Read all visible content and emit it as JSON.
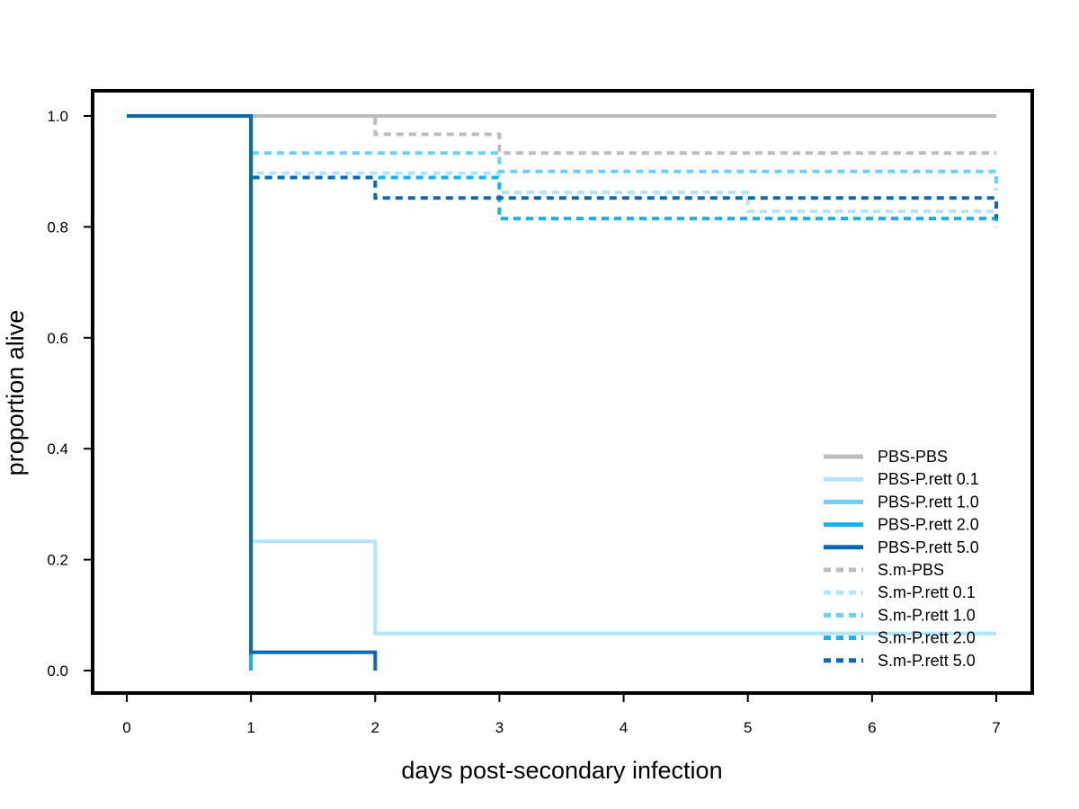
{
  "chart_data": {
    "type": "line",
    "step": true,
    "title": "",
    "xlabel": "days post-secondary infection",
    "ylabel": "proportion alive",
    "xlim": [
      0,
      7
    ],
    "ylim": [
      0,
      1
    ],
    "xticks": [
      "0",
      "1",
      "2",
      "3",
      "4",
      "5",
      "6",
      "7"
    ],
    "yticks": [
      "0.0",
      "0.2",
      "0.4",
      "0.6",
      "0.8",
      "1.0"
    ],
    "grid": false,
    "legend_position": "bottom-right",
    "series": [
      {
        "name": "PBS-PBS",
        "color": "#bdbdbd",
        "dash": "solid",
        "x": [
          0,
          7
        ],
        "y": [
          1.0,
          1.0
        ]
      },
      {
        "name": "PBS-P.rett 0.1",
        "color": "#b3e5fa",
        "dash": "solid",
        "x": [
          1,
          1,
          2,
          2,
          7
        ],
        "y": [
          1.0,
          0.233,
          0.233,
          0.067,
          0.067
        ]
      },
      {
        "name": "PBS-P.rett 1.0",
        "color": "#6dcff6",
        "dash": "solid",
        "x": [
          1,
          1
        ],
        "y": [
          1.0,
          0.0
        ]
      },
      {
        "name": "PBS-P.rett 2.0",
        "color": "#1ab0ef",
        "dash": "solid",
        "x": [
          1,
          1
        ],
        "y": [
          1.0,
          0.0
        ]
      },
      {
        "name": "PBS-P.rett 5.0",
        "color": "#0a6ab1",
        "dash": "solid",
        "x": [
          0,
          1,
          1,
          2,
          2
        ],
        "y": [
          1.0,
          1.0,
          0.033,
          0.033,
          0.0
        ]
      },
      {
        "name": "S.m-PBS",
        "color": "#bdbdbd",
        "dash": "dotted",
        "x": [
          1,
          2,
          2,
          3,
          3,
          7
        ],
        "y": [
          1.0,
          1.0,
          0.967,
          0.967,
          0.933,
          0.933
        ]
      },
      {
        "name": "S.m-P.rett 0.1",
        "color": "#b3e5fa",
        "dash": "dotted",
        "x": [
          1,
          1,
          3,
          3,
          5,
          5,
          7
        ],
        "y": [
          1.0,
          0.897,
          0.897,
          0.862,
          0.862,
          0.828,
          0.828
        ]
      },
      {
        "name": "S.m-P.rett 1.0",
        "color": "#6dcff6",
        "dash": "dotted",
        "x": [
          1,
          1,
          3,
          3,
          7,
          7
        ],
        "y": [
          1.0,
          0.933,
          0.933,
          0.9,
          0.9,
          0.867
        ]
      },
      {
        "name": "S.m-P.rett 2.0",
        "color": "#1ab0ef",
        "dash": "dotted",
        "x": [
          1,
          1,
          3,
          3,
          7,
          7
        ],
        "y": [
          1.0,
          0.889,
          0.889,
          0.815,
          0.815,
          0.8
        ]
      },
      {
        "name": "S.m-P.rett 5.0",
        "color": "#0a6ab1",
        "dash": "dotted",
        "x": [
          1,
          1,
          2,
          2,
          7,
          7
        ],
        "y": [
          1.0,
          0.889,
          0.889,
          0.852,
          0.852,
          0.815
        ]
      }
    ]
  }
}
